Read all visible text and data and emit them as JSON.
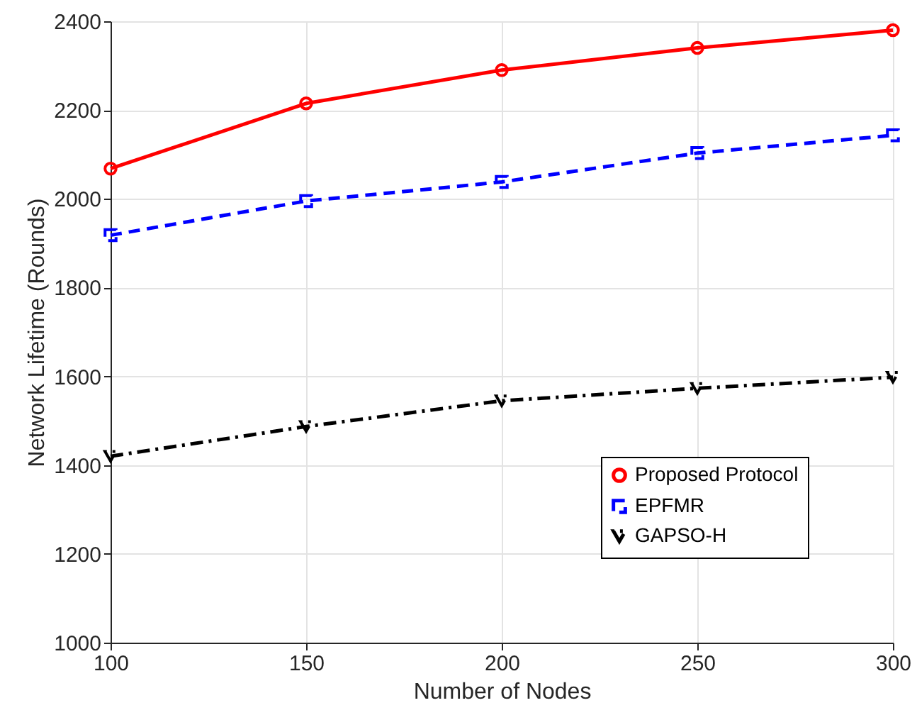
{
  "chart_data": {
    "type": "line",
    "xlabel": "Number of Nodes",
    "ylabel": "Network Lifetime (Rounds)",
    "x": [
      100,
      150,
      200,
      250,
      300
    ],
    "series": [
      {
        "name": "Proposed Protocol",
        "color": "#ff0000",
        "values": [
          2068,
          2215,
          2290,
          2340,
          2380
        ],
        "marker": "circle",
        "line_style": "solid"
      },
      {
        "name": "EPFMR",
        "color": "#0000ff",
        "values": [
          1918,
          1995,
          2038,
          2103,
          2143
        ],
        "marker": "square",
        "line_style": "dashed"
      },
      {
        "name": "GAPSO-H",
        "color": "#000000",
        "values": [
          1420,
          1487,
          1545,
          1573,
          1598
        ],
        "marker": "triangle",
        "line_style": "dashdot"
      }
    ],
    "xlim": [
      100,
      300
    ],
    "xticks": [
      100,
      150,
      200,
      250,
      300
    ],
    "ylim": [
      1000,
      2400
    ],
    "yticks": [
      1000,
      1200,
      1400,
      1600,
      1800,
      2000,
      2200,
      2400
    ],
    "grid": true,
    "legend": "bottom right"
  }
}
